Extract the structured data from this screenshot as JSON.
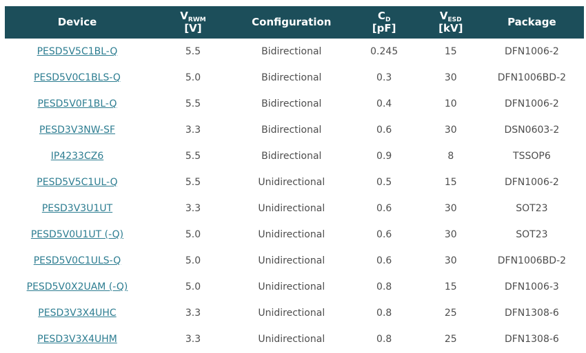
{
  "colors": {
    "header_bg": "#1C4E5A",
    "header_text": "#FFFFFF",
    "link": "#2D7D91",
    "body_text": "#4D4D4D",
    "row_bg": "#FFFFFF"
  },
  "table": {
    "columns": [
      {
        "id": "device",
        "label": "Device"
      },
      {
        "id": "vrwm",
        "label_main": "V",
        "label_sub": "RWM",
        "label_unit": "[V]"
      },
      {
        "id": "configuration",
        "label": "Configuration"
      },
      {
        "id": "cd",
        "label_main": "C",
        "label_sub": "D",
        "label_unit": "[pF]"
      },
      {
        "id": "vesd",
        "label_main": "V",
        "label_sub": "ESD",
        "label_unit": "[kV]"
      },
      {
        "id": "package",
        "label": "Package"
      }
    ],
    "rows": [
      {
        "device": "PESD5V5C1BL-Q",
        "vrwm": "5.5",
        "configuration": "Bidirectional",
        "cd": "0.245",
        "vesd": "15",
        "package": "DFN1006-2"
      },
      {
        "device": "PESD5V0C1BLS-Q",
        "vrwm": "5.0",
        "configuration": "Bidirectional",
        "cd": "0.3",
        "vesd": "30",
        "package": "DFN1006BD-2"
      },
      {
        "device": "PESD5V0F1BL-Q",
        "vrwm": "5.5",
        "configuration": "Bidirectional",
        "cd": "0.4",
        "vesd": "10",
        "package": "DFN1006-2"
      },
      {
        "device": "PESD3V3NW-SF",
        "vrwm": "3.3",
        "configuration": "Bidirectional",
        "cd": "0.6",
        "vesd": "30",
        "package": "DSN0603-2"
      },
      {
        "device": "IP4233CZ6",
        "vrwm": "5.5",
        "configuration": "Bidirectional",
        "cd": "0.9",
        "vesd": "8",
        "package": "TSSOP6"
      },
      {
        "device": "PESD5V5C1UL-Q",
        "vrwm": "5.5",
        "configuration": "Unidirectional",
        "cd": "0.5",
        "vesd": "15",
        "package": "DFN1006-2"
      },
      {
        "device": "PESD3V3U1UT",
        "vrwm": "3.3",
        "configuration": "Unidirectional",
        "cd": "0.6",
        "vesd": "30",
        "package": "SOT23"
      },
      {
        "device": "PESD5V0U1UT (-Q)",
        "vrwm": "5.0",
        "configuration": "Unidirectional",
        "cd": "0.6",
        "vesd": "30",
        "package": "SOT23"
      },
      {
        "device": "PESD5V0C1ULS-Q",
        "vrwm": "5.0",
        "configuration": "Unidirectional",
        "cd": "0.6",
        "vesd": "30",
        "package": "DFN1006BD-2"
      },
      {
        "device": "PESD5V0X2UAM (-Q)",
        "vrwm": "5.0",
        "configuration": "Unidirectional",
        "cd": "0.8",
        "vesd": "15",
        "package": "DFN1006-3"
      },
      {
        "device": "PESD3V3X4UHC",
        "vrwm": "3.3",
        "configuration": "Unidirectional",
        "cd": "0.8",
        "vesd": "25",
        "package": "DFN1308-6"
      },
      {
        "device": "PESD3V3X4UHM",
        "vrwm": "3.3",
        "configuration": "Unidirectional",
        "cd": "0.8",
        "vesd": "25",
        "package": "DFN1308-6"
      }
    ]
  }
}
